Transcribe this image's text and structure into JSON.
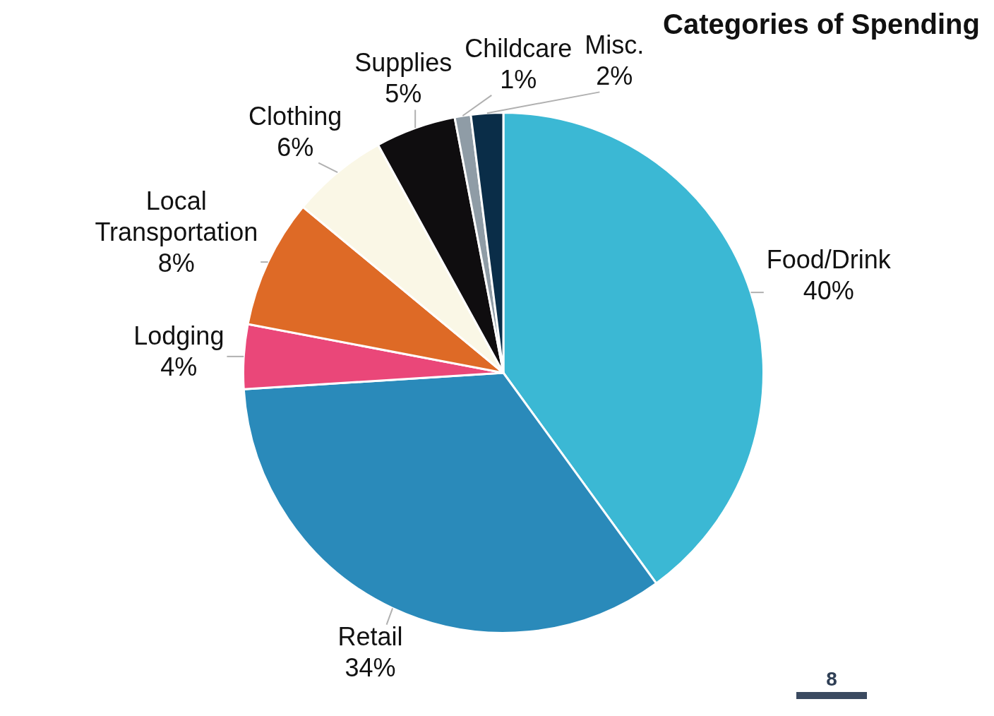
{
  "chart_data": {
    "type": "pie",
    "title": "Categories of Spending",
    "categories": [
      "Food/Drink",
      "Retail",
      "Lodging",
      "Local Transportation",
      "Clothing",
      "Supplies",
      "Childcare",
      "Misc."
    ],
    "values": [
      40,
      34,
      4,
      8,
      6,
      5,
      1,
      2
    ],
    "value_labels": [
      "40%",
      "34%",
      "4%",
      "8%",
      "6%",
      "5%",
      "1%",
      "2%"
    ],
    "colors": [
      "#3bb8d4",
      "#2a8aba",
      "#ea4779",
      "#de6a26",
      "#faf7e6",
      "#0f0d0f",
      "#8f9ca6",
      "#0a2d48"
    ],
    "legend": false,
    "annotations": [
      "8"
    ]
  }
}
